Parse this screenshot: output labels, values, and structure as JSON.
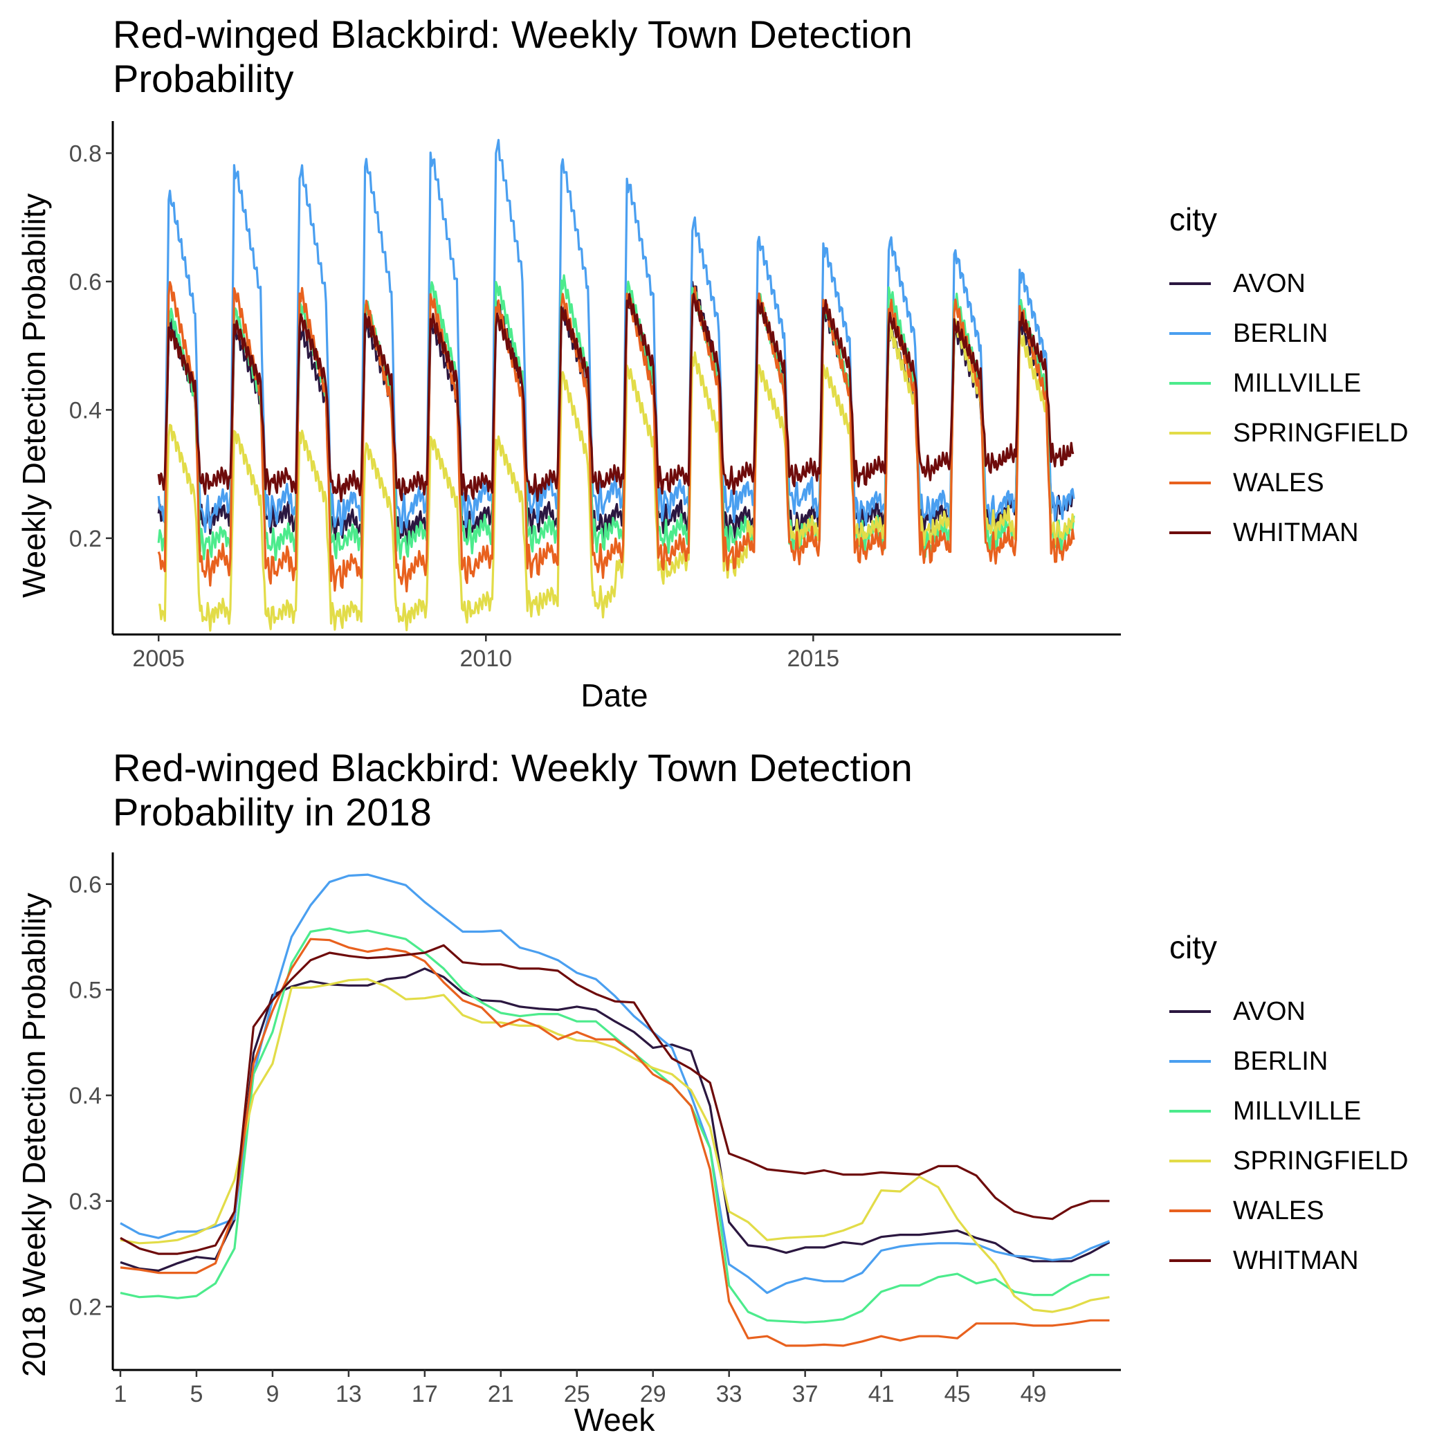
{
  "chart_data": [
    {
      "type": "line",
      "title": "Red-winged Blackbird: Weekly Town Detection\nProbability",
      "xlabel": "Date",
      "ylabel": "Weekly Detection Probability",
      "x_ticks": [
        "2005",
        "2010",
        "2015"
      ],
      "y_ticks": [
        "0.2",
        "0.4",
        "0.6",
        "0.8"
      ],
      "xlim": [
        2004.3,
        2019.7
      ],
      "ylim": [
        0.05,
        0.85
      ],
      "legend_title": "city",
      "legend_position": "right",
      "grid": false,
      "x_years": [
        2005,
        2006,
        2007,
        2008,
        2009,
        2010,
        2011,
        2012,
        2013,
        2014,
        2015,
        2016,
        2017,
        2018
      ],
      "series": [
        {
          "name": "AVON",
          "color": "#2b1740",
          "peaks": [
            0.53,
            0.52,
            0.52,
            0.53,
            0.53,
            0.56,
            0.55,
            0.57,
            0.59,
            0.57,
            0.55,
            0.52,
            0.52,
            0.53
          ],
          "troughs": [
            0.22,
            0.22,
            0.21,
            0.2,
            0.21,
            0.22,
            0.21,
            0.22,
            0.21,
            0.21,
            0.22,
            0.22,
            0.22,
            0.24
          ]
        },
        {
          "name": "BERLIN",
          "color": "#4a9ff0",
          "peaks": [
            0.73,
            0.77,
            0.77,
            0.78,
            0.79,
            0.81,
            0.78,
            0.75,
            0.69,
            0.66,
            0.65,
            0.66,
            0.64,
            0.61
          ],
          "troughs": [
            0.22,
            0.23,
            0.22,
            0.22,
            0.23,
            0.24,
            0.24,
            0.24,
            0.24,
            0.25,
            0.23,
            0.23,
            0.23,
            0.24
          ]
        },
        {
          "name": "MILLVILLE",
          "color": "#4ceb8c",
          "peaks": [
            0.55,
            0.55,
            0.56,
            0.56,
            0.59,
            0.59,
            0.6,
            0.59,
            0.58,
            0.57,
            0.56,
            0.58,
            0.57,
            0.56
          ],
          "troughs": [
            0.18,
            0.18,
            0.18,
            0.18,
            0.19,
            0.19,
            0.19,
            0.19,
            0.19,
            0.19,
            0.19,
            0.18,
            0.19,
            0.19
          ]
        },
        {
          "name": "SPRINGFIELD",
          "color": "#e2dc48",
          "peaks": [
            0.37,
            0.36,
            0.36,
            0.34,
            0.35,
            0.35,
            0.45,
            0.46,
            0.48,
            0.46,
            0.46,
            0.52,
            0.53,
            0.51
          ],
          "troughs": [
            0.07,
            0.07,
            0.07,
            0.07,
            0.08,
            0.09,
            0.09,
            0.14,
            0.15,
            0.2,
            0.2,
            0.2,
            0.21,
            0.2
          ]
        },
        {
          "name": "WALES",
          "color": "#e8611e",
          "peaks": [
            0.59,
            0.58,
            0.58,
            0.56,
            0.57,
            0.56,
            0.57,
            0.57,
            0.58,
            0.57,
            0.56,
            0.56,
            0.56,
            0.55
          ],
          "troughs": [
            0.14,
            0.14,
            0.13,
            0.13,
            0.14,
            0.15,
            0.15,
            0.16,
            0.16,
            0.17,
            0.17,
            0.17,
            0.17,
            0.17
          ]
        },
        {
          "name": "WHITMAN",
          "color": "#6e0b0b",
          "peaks": [
            0.52,
            0.53,
            0.54,
            0.54,
            0.54,
            0.54,
            0.55,
            0.57,
            0.57,
            0.56,
            0.56,
            0.54,
            0.53,
            0.54
          ],
          "troughs": [
            0.28,
            0.28,
            0.27,
            0.27,
            0.27,
            0.27,
            0.28,
            0.28,
            0.28,
            0.29,
            0.29,
            0.3,
            0.31,
            0.32
          ]
        }
      ]
    },
    {
      "type": "line",
      "title": "Red-winged Blackbird: Weekly Town Detection\nProbability in 2018",
      "xlabel": "Week",
      "ylabel": "2018 Weekly Detection Probability",
      "x_ticks": [
        "1",
        "5",
        "9",
        "13",
        "17",
        "21",
        "25",
        "29",
        "33",
        "37",
        "41",
        "45",
        "49"
      ],
      "y_ticks": [
        "0.2",
        "0.3",
        "0.4",
        "0.5",
        "0.6"
      ],
      "xlim": [
        0.6,
        53.6
      ],
      "ylim": [
        0.14,
        0.63
      ],
      "legend_title": "city",
      "legend_position": "right",
      "grid": false,
      "x": [
        1,
        2,
        3,
        4,
        5,
        6,
        7,
        8,
        9,
        10,
        11,
        12,
        13,
        14,
        15,
        16,
        17,
        18,
        19,
        20,
        21,
        22,
        23,
        24,
        25,
        26,
        27,
        28,
        29,
        30,
        31,
        32,
        33,
        34,
        35,
        36,
        37,
        38,
        39,
        40,
        41,
        42,
        43,
        44,
        45,
        46,
        47,
        48,
        49,
        50,
        51,
        52,
        53
      ],
      "series": [
        {
          "name": "AVON",
          "color": "#2b1740",
          "values": [
            0.242,
            0.236,
            0.234,
            0.241,
            0.247,
            0.245,
            0.282,
            0.44,
            0.495,
            0.503,
            0.508,
            0.505,
            0.504,
            0.504,
            0.51,
            0.512,
            0.52,
            0.512,
            0.497,
            0.49,
            0.489,
            0.484,
            0.482,
            0.481,
            0.484,
            0.481,
            0.47,
            0.46,
            0.445,
            0.448,
            0.442,
            0.39,
            0.28,
            0.258,
            0.256,
            0.251,
            0.256,
            0.256,
            0.261,
            0.259,
            0.266,
            0.268,
            0.268,
            0.27,
            0.272,
            0.265,
            0.26,
            0.248,
            0.243,
            0.243,
            0.243,
            0.251,
            0.261
          ]
        },
        {
          "name": "BERLIN",
          "color": "#4a9ff0",
          "values": [
            0.279,
            0.269,
            0.265,
            0.271,
            0.271,
            0.276,
            0.283,
            0.42,
            0.49,
            0.55,
            0.58,
            0.602,
            0.608,
            0.609,
            0.604,
            0.599,
            0.583,
            0.569,
            0.555,
            0.555,
            0.556,
            0.54,
            0.535,
            0.528,
            0.516,
            0.51,
            0.494,
            0.475,
            0.46,
            0.445,
            0.4,
            0.35,
            0.24,
            0.228,
            0.213,
            0.222,
            0.227,
            0.224,
            0.224,
            0.232,
            0.253,
            0.257,
            0.259,
            0.26,
            0.26,
            0.259,
            0.252,
            0.248,
            0.247,
            0.244,
            0.246,
            0.255,
            0.262
          ]
        },
        {
          "name": "MILLVILLE",
          "color": "#4ceb8c",
          "values": [
            0.213,
            0.209,
            0.21,
            0.208,
            0.21,
            0.222,
            0.255,
            0.42,
            0.46,
            0.525,
            0.555,
            0.558,
            0.554,
            0.556,
            0.552,
            0.548,
            0.535,
            0.52,
            0.5,
            0.488,
            0.478,
            0.475,
            0.477,
            0.477,
            0.47,
            0.47,
            0.455,
            0.44,
            0.425,
            0.41,
            0.39,
            0.35,
            0.22,
            0.195,
            0.187,
            0.186,
            0.185,
            0.186,
            0.188,
            0.196,
            0.214,
            0.22,
            0.22,
            0.228,
            0.231,
            0.222,
            0.226,
            0.214,
            0.211,
            0.211,
            0.222,
            0.23,
            0.23
          ]
        },
        {
          "name": "SPRINGFIELD",
          "color": "#e2dc48",
          "values": [
            0.263,
            0.26,
            0.261,
            0.263,
            0.269,
            0.278,
            0.32,
            0.4,
            0.43,
            0.502,
            0.502,
            0.505,
            0.509,
            0.51,
            0.503,
            0.491,
            0.492,
            0.495,
            0.476,
            0.469,
            0.469,
            0.466,
            0.466,
            0.458,
            0.452,
            0.451,
            0.445,
            0.435,
            0.426,
            0.42,
            0.405,
            0.37,
            0.29,
            0.28,
            0.263,
            0.265,
            0.266,
            0.267,
            0.272,
            0.279,
            0.31,
            0.309,
            0.323,
            0.313,
            0.283,
            0.26,
            0.24,
            0.21,
            0.197,
            0.195,
            0.199,
            0.206,
            0.209
          ]
        },
        {
          "name": "WALES",
          "color": "#e8611e",
          "values": [
            0.237,
            0.235,
            0.232,
            0.232,
            0.232,
            0.241,
            0.29,
            0.43,
            0.48,
            0.52,
            0.548,
            0.547,
            0.54,
            0.536,
            0.539,
            0.536,
            0.527,
            0.507,
            0.49,
            0.483,
            0.465,
            0.472,
            0.465,
            0.453,
            0.46,
            0.453,
            0.453,
            0.44,
            0.42,
            0.41,
            0.39,
            0.33,
            0.205,
            0.17,
            0.172,
            0.163,
            0.163,
            0.164,
            0.163,
            0.167,
            0.172,
            0.168,
            0.172,
            0.172,
            0.17,
            0.184,
            0.184,
            0.184,
            0.182,
            0.182,
            0.184,
            0.187,
            0.187
          ]
        },
        {
          "name": "WHITMAN",
          "color": "#6e0b0b",
          "values": [
            0.265,
            0.255,
            0.25,
            0.25,
            0.253,
            0.258,
            0.29,
            0.465,
            0.49,
            0.51,
            0.528,
            0.535,
            0.532,
            0.53,
            0.531,
            0.533,
            0.535,
            0.542,
            0.526,
            0.524,
            0.524,
            0.52,
            0.52,
            0.518,
            0.505,
            0.496,
            0.489,
            0.488,
            0.46,
            0.435,
            0.425,
            0.412,
            0.345,
            0.338,
            0.33,
            0.328,
            0.326,
            0.329,
            0.325,
            0.325,
            0.327,
            0.326,
            0.325,
            0.333,
            0.333,
            0.324,
            0.303,
            0.29,
            0.285,
            0.283,
            0.294,
            0.3,
            0.3
          ]
        }
      ]
    }
  ]
}
